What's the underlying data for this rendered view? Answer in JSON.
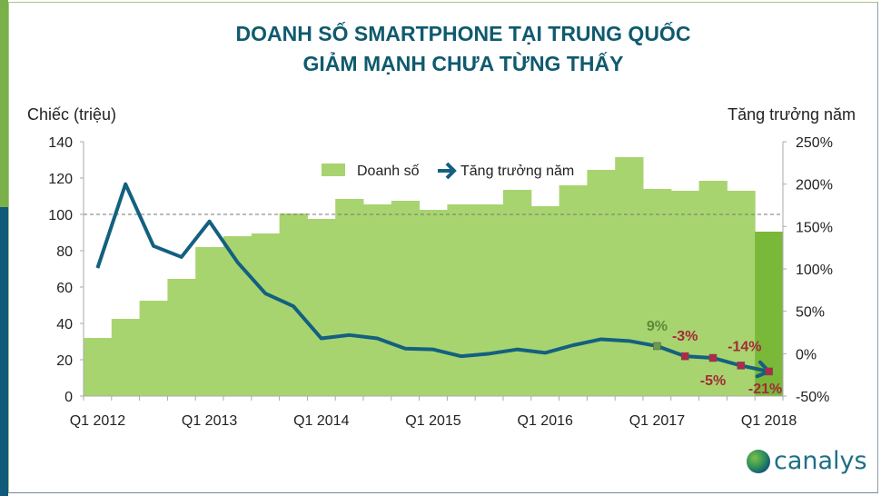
{
  "title_line1": "DOANH SỐ SMARTPHONE TẠI TRUNG QUỐC",
  "title_line2": "GIẢM MẠNH CHƯA TỪNG THẤY",
  "brand": "canalys",
  "colors": {
    "bar": "#a8d46f",
    "bar_last": "#7ab83a",
    "line": "#136080",
    "title": "#0f5a6e",
    "label_positive": "#5a8a3a",
    "label_negative": "#a52a3a"
  },
  "chart_data": {
    "type": "bar+line",
    "ylabel_left": "Chiếc (triệu)",
    "ylabel_right": "Tăng trưởng năm",
    "ylim_left": [
      0,
      140
    ],
    "ylim_right": [
      -50,
      250
    ],
    "yticks_left": [
      "0",
      "20",
      "40",
      "60",
      "80",
      "100",
      "120",
      "140"
    ],
    "yticks_right": [
      "-50%",
      "0%",
      "50%",
      "100%",
      "150%",
      "200%",
      "250%"
    ],
    "reference_line": 100,
    "legend": {
      "placement": "top-center",
      "entries": [
        "Doanh số",
        "Tăng trưởng năm"
      ]
    },
    "categories": [
      "Q1 2012",
      "Q2 2012",
      "Q3 2012",
      "Q4 2012",
      "Q1 2013",
      "Q2 2013",
      "Q3 2013",
      "Q4 2013",
      "Q1 2014",
      "Q2 2014",
      "Q3 2014",
      "Q4 2014",
      "Q1 2015",
      "Q2 2015",
      "Q3 2015",
      "Q4 2015",
      "Q1 2016",
      "Q2 2016",
      "Q3 2016",
      "Q4 2016",
      "Q1 2017",
      "Q2 2017",
      "Q3 2017",
      "Q4 2017",
      "Q1 2018"
    ],
    "xtick_labels": [
      "Q1 2012",
      "Q1 2013",
      "Q1 2014",
      "Q1 2015",
      "Q1 2016",
      "Q1 2017",
      "Q1 2018"
    ],
    "series": [
      {
        "name": "Doanh số",
        "type": "bar",
        "axis": "left",
        "values": [
          32,
          42.5,
          52.5,
          64.5,
          82,
          88,
          89.5,
          100.5,
          97.5,
          108.5,
          105.5,
          107.5,
          102.5,
          105.5,
          105.5,
          113.5,
          104.5,
          116,
          124.5,
          131.5,
          114,
          113,
          118.5,
          113,
          90.5
        ]
      },
      {
        "name": "Tăng trưởng năm",
        "type": "line",
        "axis": "right",
        "values": [
          101,
          200,
          127,
          114,
          156,
          108,
          71,
          56,
          18,
          22,
          18,
          6,
          5,
          -3,
          0,
          5,
          1,
          10,
          17,
          15,
          9,
          -3,
          -5,
          -14,
          -21
        ]
      }
    ],
    "data_labels": [
      {
        "category": "Q1 2017",
        "text": "9%"
      },
      {
        "category": "Q2 2017",
        "text": "-3%"
      },
      {
        "category": "Q3 2017",
        "text": "-5%"
      },
      {
        "category": "Q4 2017",
        "text": "-14%"
      },
      {
        "category": "Q1 2018",
        "text": "-21%"
      }
    ]
  }
}
